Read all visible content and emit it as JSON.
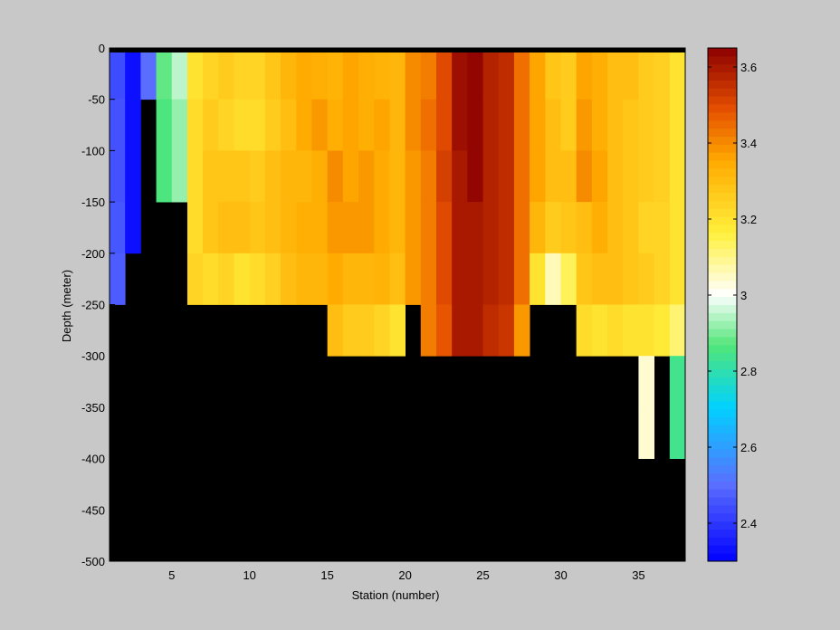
{
  "chart_data": {
    "type": "heatmap",
    "title": "",
    "xlabel": "Station (number)",
    "ylabel": "Depth (meter)",
    "xlim": [
      1,
      38
    ],
    "ylim": [
      -500,
      0
    ],
    "xticks": [
      5,
      10,
      15,
      20,
      25,
      30,
      35
    ],
    "yticks": [
      0,
      -50,
      -100,
      -150,
      -200,
      -250,
      -300,
      -350,
      -400,
      -450,
      -500
    ],
    "colorbar": {
      "clim": [
        2.3,
        3.65
      ],
      "ticks": [
        2.4,
        2.6,
        2.8,
        3,
        3.2,
        3.4,
        3.6
      ],
      "colormap": "jet-white-center"
    },
    "missing_color": "#000000",
    "depth_levels": [
      0,
      -50,
      -100,
      -150,
      -200,
      -250,
      -300,
      -350,
      -400,
      -450,
      -500
    ],
    "station_values": [
      [
        2.44,
        2.45,
        2.45,
        2.46,
        2.47,
        null,
        null,
        null,
        null,
        null
      ],
      [
        2.33,
        2.33,
        2.33,
        2.33,
        null,
        null,
        null,
        null,
        null,
        null
      ],
      [
        2.5,
        null,
        null,
        null,
        null,
        null,
        null,
        null,
        null,
        null
      ],
      [
        2.88,
        2.86,
        2.86,
        null,
        null,
        null,
        null,
        null,
        null,
        null
      ],
      [
        2.95,
        2.92,
        2.92,
        null,
        null,
        null,
        null,
        null,
        null,
        null
      ],
      [
        3.2,
        3.22,
        3.22,
        3.22,
        3.24,
        null,
        null,
        null,
        null,
        null
      ],
      [
        3.24,
        3.26,
        3.28,
        3.28,
        3.22,
        null,
        null,
        null,
        null,
        null
      ],
      [
        3.26,
        3.24,
        3.28,
        3.3,
        3.24,
        null,
        null,
        null,
        null,
        null
      ],
      [
        3.24,
        3.22,
        3.28,
        3.3,
        3.2,
        null,
        null,
        null,
        null,
        null
      ],
      [
        3.24,
        3.22,
        3.26,
        3.28,
        3.22,
        null,
        null,
        null,
        null,
        null
      ],
      [
        3.28,
        3.26,
        3.3,
        3.3,
        3.25,
        null,
        null,
        null,
        null,
        null
      ],
      [
        3.32,
        3.3,
        3.32,
        3.32,
        3.3,
        null,
        null,
        null,
        null,
        null
      ],
      [
        3.35,
        3.35,
        3.32,
        3.34,
        3.32,
        null,
        null,
        null,
        null,
        null
      ],
      [
        3.34,
        3.38,
        3.34,
        3.34,
        3.32,
        null,
        null,
        null,
        null,
        null
      ],
      [
        3.33,
        3.34,
        3.4,
        3.38,
        3.35,
        3.3,
        null,
        null,
        null,
        null
      ],
      [
        3.36,
        3.36,
        3.36,
        3.38,
        3.32,
        3.26,
        null,
        null,
        null,
        null
      ],
      [
        3.34,
        3.34,
        3.38,
        3.38,
        3.32,
        3.26,
        null,
        null,
        null,
        null
      ],
      [
        3.33,
        3.36,
        3.35,
        3.35,
        3.33,
        3.24,
        null,
        null,
        null,
        null
      ],
      [
        3.32,
        3.32,
        3.32,
        3.32,
        3.3,
        3.2,
        null,
        null,
        null,
        null
      ],
      [
        3.4,
        3.4,
        3.38,
        3.38,
        3.38,
        null,
        null,
        null,
        null,
        null
      ],
      [
        3.42,
        3.44,
        3.42,
        3.42,
        3.42,
        3.42,
        null,
        null,
        null,
        null
      ],
      [
        3.5,
        3.5,
        3.52,
        3.5,
        3.5,
        3.48,
        null,
        null,
        null,
        null
      ],
      [
        3.62,
        3.62,
        3.6,
        3.6,
        3.6,
        3.6,
        null,
        null,
        null,
        null
      ],
      [
        3.64,
        3.64,
        3.64,
        3.6,
        3.6,
        3.6,
        null,
        null,
        null,
        null
      ],
      [
        3.58,
        3.58,
        3.58,
        3.58,
        3.58,
        3.56,
        null,
        null,
        null,
        null
      ],
      [
        3.56,
        3.56,
        3.56,
        3.56,
        3.56,
        3.54,
        null,
        null,
        null,
        null
      ],
      [
        3.44,
        3.44,
        3.44,
        3.44,
        3.44,
        3.38,
        null,
        null,
        null,
        null
      ],
      [
        3.36,
        3.36,
        3.36,
        3.32,
        3.2,
        null,
        null,
        null,
        null,
        null
      ],
      [
        3.28,
        3.3,
        3.3,
        3.26,
        3.06,
        null,
        null,
        null,
        null,
        null
      ],
      [
        3.26,
        3.26,
        3.3,
        3.28,
        3.14,
        null,
        null,
        null,
        null,
        null
      ],
      [
        3.36,
        3.38,
        3.4,
        3.3,
        3.28,
        3.22,
        null,
        null,
        null,
        null
      ],
      [
        3.34,
        3.34,
        3.36,
        3.34,
        3.3,
        3.2,
        null,
        null,
        null,
        null
      ],
      [
        3.3,
        3.3,
        3.3,
        3.3,
        3.3,
        3.22,
        null,
        null,
        null,
        null
      ],
      [
        3.3,
        3.28,
        3.28,
        3.28,
        3.28,
        3.2,
        null,
        null,
        null,
        null
      ],
      [
        3.26,
        3.26,
        3.26,
        3.24,
        3.26,
        3.2,
        3.04,
        3.04,
        null,
        null
      ],
      [
        3.25,
        3.25,
        3.25,
        3.24,
        3.24,
        3.18,
        null,
        null,
        null,
        null
      ],
      [
        3.2,
        3.2,
        3.2,
        3.2,
        3.2,
        3.12,
        2.84,
        2.84,
        null,
        null
      ]
    ]
  }
}
